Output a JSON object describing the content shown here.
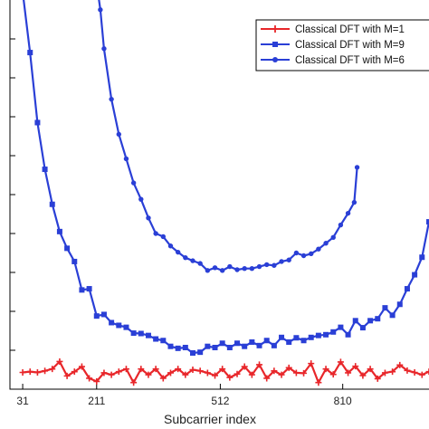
{
  "chart_data": {
    "type": "line",
    "title": "",
    "xlabel": "Subcarrier index",
    "ylabel": "",
    "xlim": [
      0,
      1020
    ],
    "ylim": [
      0,
      10
    ],
    "x_ticks": [
      31,
      211,
      512,
      810
    ],
    "legend_position": "top-right",
    "series": [
      {
        "name": "Classical DFT with M=1",
        "color": "#e8262a",
        "marker": "plus",
        "x": [
          31,
          49,
          67,
          85,
          103,
          121,
          139,
          157,
          175,
          193,
          211,
          229,
          247,
          265,
          283,
          301,
          319,
          337,
          355,
          373,
          391,
          409,
          427,
          445,
          463,
          481,
          499,
          517,
          535,
          553,
          571,
          589,
          607,
          625,
          643,
          661,
          679,
          697,
          715,
          733,
          751,
          769,
          787,
          805,
          823,
          841,
          859,
          877,
          895,
          913,
          931,
          949,
          967,
          985,
          1003,
          1020
        ],
        "y": [
          0.43,
          0.45,
          0.43,
          0.47,
          0.52,
          0.71,
          0.34,
          0.45,
          0.58,
          0.28,
          0.2,
          0.42,
          0.37,
          0.45,
          0.52,
          0.17,
          0.52,
          0.37,
          0.52,
          0.28,
          0.42,
          0.52,
          0.37,
          0.5,
          0.47,
          0.42,
          0.35,
          0.52,
          0.3,
          0.39,
          0.58,
          0.37,
          0.63,
          0.28,
          0.47,
          0.37,
          0.55,
          0.42,
          0.41,
          0.66,
          0.17,
          0.52,
          0.38,
          0.7,
          0.42,
          0.59,
          0.35,
          0.52,
          0.27,
          0.42,
          0.45,
          0.62,
          0.48,
          0.43,
          0.37,
          0.45
        ]
      },
      {
        "name": "Classical DFT with M=9",
        "color": "#2a3fd6",
        "marker": "square",
        "x": [
          31,
          49,
          67,
          85,
          103,
          121,
          139,
          157,
          175,
          193,
          211,
          229,
          247,
          265,
          283,
          301,
          319,
          337,
          355,
          373,
          391,
          409,
          427,
          445,
          463,
          481,
          499,
          517,
          535,
          553,
          571,
          589,
          607,
          625,
          643,
          661,
          679,
          697,
          715,
          733,
          751,
          769,
          787,
          805,
          823,
          841,
          859,
          877,
          895,
          913,
          931,
          949,
          967,
          985,
          1003,
          1020
        ],
        "y": [
          10.2,
          8.65,
          6.85,
          5.65,
          4.75,
          4.05,
          3.62,
          3.28,
          2.55,
          2.58,
          1.88,
          1.92,
          1.71,
          1.64,
          1.59,
          1.44,
          1.43,
          1.38,
          1.29,
          1.25,
          1.1,
          1.05,
          1.07,
          0.93,
          0.95,
          1.1,
          1.07,
          1.18,
          1.07,
          1.18,
          1.1,
          1.21,
          1.12,
          1.25,
          1.12,
          1.33,
          1.21,
          1.32,
          1.25,
          1.33,
          1.38,
          1.4,
          1.47,
          1.59,
          1.4,
          1.76,
          1.58,
          1.76,
          1.81,
          2.09,
          1.9,
          2.18,
          2.58,
          2.94,
          3.39,
          4.3
        ]
      },
      {
        "name": "Classical DFT with M=6",
        "color": "#2a3fd6",
        "marker": "dot",
        "x": [
          210,
          220,
          229,
          247,
          265,
          283,
          301,
          319,
          337,
          355,
          373,
          391,
          409,
          427,
          445,
          463,
          481,
          499,
          517,
          535,
          553,
          571,
          589,
          607,
          625,
          643,
          661,
          679,
          697,
          715,
          733,
          751,
          769,
          787,
          805,
          823,
          838,
          845
        ],
        "y": [
          10.5,
          9.75,
          8.75,
          7.45,
          6.55,
          5.92,
          5.3,
          4.88,
          4.4,
          4.0,
          3.92,
          3.68,
          3.52,
          3.38,
          3.3,
          3.23,
          3.05,
          3.12,
          3.05,
          3.15,
          3.07,
          3.1,
          3.1,
          3.15,
          3.2,
          3.18,
          3.28,
          3.32,
          3.5,
          3.43,
          3.48,
          3.6,
          3.75,
          3.9,
          4.22,
          4.52,
          4.8,
          5.7
        ]
      }
    ]
  },
  "legend": {
    "m1_label": "Classical DFT with M=1",
    "m9_label": "Classical DFT with M=9",
    "m6_label": "Classical DFT with M=6"
  }
}
